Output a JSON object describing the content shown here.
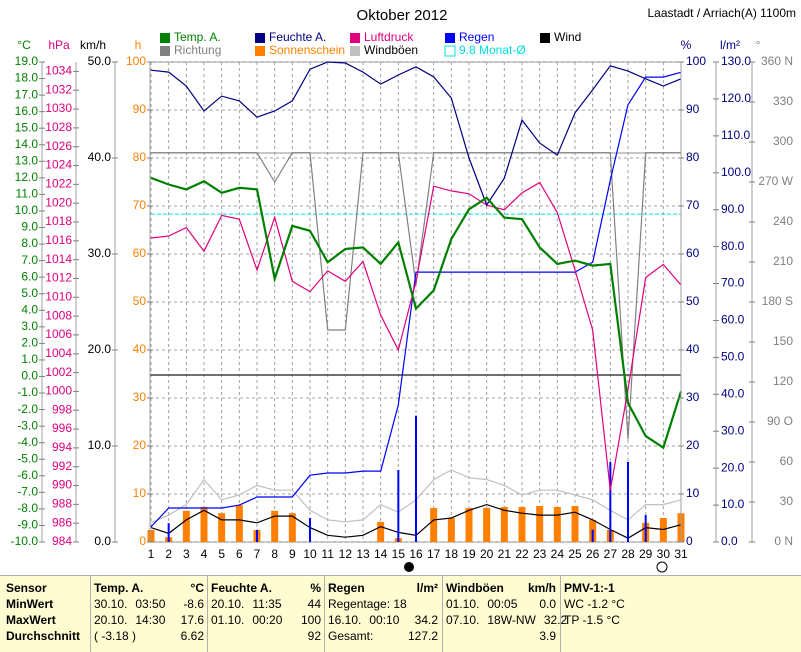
{
  "chart_data": {
    "type": "line",
    "title": "Oktober 2012",
    "subtitle": "Laastadt / Arriach(A) 1100m",
    "x": [
      1,
      2,
      3,
      4,
      5,
      6,
      7,
      8,
      9,
      10,
      11,
      12,
      13,
      14,
      15,
      16,
      17,
      18,
      19,
      20,
      21,
      22,
      23,
      24,
      25,
      26,
      27,
      28,
      29,
      30,
      31
    ],
    "xlim": [
      1,
      31
    ],
    "xticks": [
      1,
      2,
      3,
      4,
      5,
      6,
      7,
      8,
      9,
      10,
      11,
      12,
      13,
      14,
      15,
      16,
      17,
      18,
      19,
      20,
      21,
      22,
      23,
      24,
      25,
      26,
      27,
      28,
      29,
      30,
      31
    ],
    "grid": true,
    "axes": [
      {
        "label": "°C",
        "color": "#008000",
        "lim": [
          -10,
          19
        ],
        "ticks": [
          {
            "value": -10,
            "label": "-10.0"
          },
          {
            "value": -9,
            "label": "-9.0"
          },
          {
            "value": -8,
            "label": "-8.0"
          },
          {
            "value": -7,
            "label": "-7.0"
          },
          {
            "value": -6,
            "label": "-6.0"
          },
          {
            "value": -5,
            "label": "-5.0"
          },
          {
            "value": -4,
            "label": "-4.0"
          },
          {
            "value": -3,
            "label": "-3.0"
          },
          {
            "value": -2,
            "label": "-2.0"
          },
          {
            "value": -1,
            "label": "-1.0"
          },
          {
            "value": 0,
            "label": "0.0"
          },
          {
            "value": 1,
            "label": "1.0"
          },
          {
            "value": 2,
            "label": "2.0"
          },
          {
            "value": 3,
            "label": "3.0"
          },
          {
            "value": 4,
            "label": "4.0"
          },
          {
            "value": 5,
            "label": "5.0"
          },
          {
            "value": 6,
            "label": "6.0"
          },
          {
            "value": 7,
            "label": "7.0"
          },
          {
            "value": 8,
            "label": "8.0"
          },
          {
            "value": 9,
            "label": "9.0"
          },
          {
            "value": 10,
            "label": "10.0"
          },
          {
            "value": 11,
            "label": "11.0"
          },
          {
            "value": 12,
            "label": "12.0"
          },
          {
            "value": 13,
            "label": "13.0"
          },
          {
            "value": 14,
            "label": "14.0"
          },
          {
            "value": 15,
            "label": "15.0"
          },
          {
            "value": 16,
            "label": "16.0"
          },
          {
            "value": 17,
            "label": "17.0"
          },
          {
            "value": 18,
            "label": "18.0"
          },
          {
            "value": 19,
            "label": "19.0"
          }
        ]
      },
      {
        "label": "hPa",
        "color": "#e0007f",
        "lim": [
          984,
          1035
        ],
        "ticks": [
          984,
          986,
          988,
          990,
          992,
          994,
          996,
          998,
          1000,
          1002,
          1004,
          1006,
          1008,
          1010,
          1012,
          1014,
          1016,
          1018,
          1020,
          1022,
          1024,
          1026,
          1028,
          1030,
          1032,
          1034
        ]
      },
      {
        "label": "km/h",
        "color": "#000000",
        "lim": [
          0,
          50
        ],
        "ticks": [
          {
            "value": 0,
            "label": "0.0"
          },
          {
            "value": 10,
            "label": "10.0"
          },
          {
            "value": 20,
            "label": "20.0"
          },
          {
            "value": 30,
            "label": "30.0"
          },
          {
            "value": 40,
            "label": "40.0"
          },
          {
            "value": 50,
            "label": "50.0"
          }
        ]
      },
      {
        "label": "h",
        "color": "#ff8000",
        "lim": [
          0,
          100
        ],
        "ticks": [
          0,
          10,
          20,
          30,
          40,
          50,
          60,
          70,
          80,
          90,
          100
        ]
      },
      {
        "label": "%",
        "color": "#000080",
        "lim": [
          0,
          100
        ],
        "ticks": [
          0,
          10,
          20,
          30,
          40,
          50,
          60,
          70,
          80,
          90,
          100
        ],
        "grid": true
      },
      {
        "label": "l/m²",
        "color": "#000080",
        "lim": [
          0,
          130
        ],
        "ticks": [
          {
            "value": 0,
            "label": "0.0"
          },
          {
            "value": 10,
            "label": "10.0"
          },
          {
            "value": 20,
            "label": "20.0"
          },
          {
            "value": 30,
            "label": "30.0"
          },
          {
            "value": 40,
            "label": "40.0"
          },
          {
            "value": 50,
            "label": "50.0"
          },
          {
            "value": 60,
            "label": "60.0"
          },
          {
            "value": 70,
            "label": "70.0"
          },
          {
            "value": 80,
            "label": "80.0"
          },
          {
            "value": 90,
            "label": "90.0"
          },
          {
            "value": 100,
            "label": "100.0"
          },
          {
            "value": 110,
            "label": "110.0"
          },
          {
            "value": 120,
            "label": "120.0"
          },
          {
            "value": 130,
            "label": "130.0"
          }
        ]
      },
      {
        "label": "°",
        "color": "#808080",
        "lim": [
          0,
          360
        ],
        "ticks": [
          {
            "value": 0,
            "label": "0 N"
          },
          30,
          60,
          {
            "value": 90,
            "label": "90 O"
          },
          120,
          150,
          {
            "value": 180,
            "label": "180 S"
          },
          210,
          240,
          {
            "value": 270,
            "label": "270 W"
          },
          300,
          330,
          {
            "value": 360,
            "label": "360 N"
          }
        ]
      }
    ],
    "series": [
      {
        "name": "Temp. A.",
        "color": "#008000",
        "axis": "°C",
        "style": "line",
        "values": [
          12.0,
          11.6,
          11.3,
          11.8,
          11.1,
          11.4,
          11.3,
          5.9,
          9.1,
          8.8,
          6.9,
          7.7,
          7.8,
          6.8,
          8.1,
          4.1,
          5.2,
          8.3,
          10.1,
          10.8,
          9.6,
          9.5,
          7.8,
          6.8,
          7.0,
          6.7,
          6.8,
          -1.6,
          -3.6,
          -4.3,
          -0.9
        ]
      },
      {
        "name": "Feuchte A.",
        "color": "#000080",
        "axis": "%",
        "style": "line",
        "values": [
          98.3,
          97.9,
          95,
          89.8,
          92.9,
          91.9,
          88.5,
          89.8,
          91.9,
          98.5,
          100,
          99.8,
          97.9,
          95.4,
          97.3,
          99,
          96.9,
          92.5,
          80,
          70.2,
          75.8,
          87.9,
          83.1,
          80.6,
          89.4,
          94.2,
          99.2,
          98.1,
          96.5,
          95,
          96.5
        ]
      },
      {
        "name": "Luftdruck",
        "color": "#e0007f",
        "axis": "hPa",
        "style": "line",
        "values": [
          1016.3,
          1016.5,
          1017.4,
          1014.9,
          1018.7,
          1018.3,
          1012.9,
          1018.5,
          1011.7,
          1010.6,
          1012.8,
          1011.7,
          1013.8,
          1008.1,
          1004.4,
          1011.7,
          1021.8,
          1021.3,
          1021.0,
          1019.8,
          1019.3,
          1021.1,
          1022.2,
          1019.0,
          1012.9,
          1006.5,
          989.5,
          1000.2,
          1012.1,
          1013.5,
          1011.3
        ]
      },
      {
        "name": "Regen",
        "color": "#0000ff",
        "axis": "l/m²",
        "style": "line",
        "values": [
          4.1,
          9.2,
          9.2,
          9.2,
          9.2,
          10.0,
          12.2,
          12.2,
          12.2,
          18.1,
          18.7,
          18.7,
          19.2,
          19.2,
          37.1,
          73.1,
          73.1,
          73.1,
          73.1,
          73.1,
          73.1,
          73.1,
          73.1,
          73.1,
          73.1,
          75.8,
          98.0,
          118.4,
          125.9,
          125.9,
          127.2
        ],
        "daily_values": [
          0,
          5.1,
          0,
          0,
          0,
          0,
          3.3,
          0,
          0,
          6.5,
          0,
          0,
          0,
          0,
          19.5,
          34.2,
          0,
          0,
          0,
          0,
          0,
          0,
          0,
          0,
          0,
          3.3,
          21.7,
          21.7,
          7.3,
          0,
          0
        ]
      },
      {
        "name": "Wind",
        "color": "#000000",
        "axis": "km/h",
        "style": "line",
        "values": [
          1.5,
          0.9,
          2.3,
          3.3,
          2.3,
          2.3,
          2.0,
          2.7,
          2.7,
          1.5,
          0.7,
          0.5,
          0.7,
          1.6,
          1.0,
          0.7,
          2.3,
          2.5,
          3.3,
          3.9,
          3.3,
          3.0,
          2.8,
          2.8,
          3.1,
          2.3,
          1.3,
          0.4,
          1.5,
          1.3,
          1.8
        ]
      },
      {
        "name": "Richtung",
        "color": "#808080",
        "axis": "°",
        "style": "line",
        "values": [
          292,
          292,
          292,
          292,
          292,
          292,
          292,
          270,
          292,
          292,
          159,
          159,
          292,
          292,
          292,
          193,
          292,
          292,
          292,
          292,
          292,
          292,
          292,
          292,
          292,
          292,
          292,
          77,
          292,
          292,
          292
        ]
      },
      {
        "name": "Sonnenschein",
        "color": "#ff8000",
        "axis": "h",
        "style": "bar",
        "values": [
          2.5,
          1.0,
          6.5,
          7.3,
          6.0,
          7.7,
          2.5,
          6.5,
          6.0,
          0,
          0,
          0,
          0,
          4.2,
          0.8,
          0,
          7.1,
          5.0,
          7.1,
          7.1,
          7.3,
          7.3,
          7.5,
          7.3,
          7.5,
          4.6,
          2.5,
          0,
          4.0,
          5.0,
          6.0
        ]
      },
      {
        "name": "Windböen",
        "color": "#c0c0c0",
        "axis": "km/h",
        "style": "line",
        "values": [
          2.0,
          2.8,
          3.9,
          6.5,
          4.4,
          4.9,
          5.9,
          5.4,
          5.4,
          3.3,
          2.3,
          2.1,
          2.3,
          3.9,
          3.1,
          4.4,
          6.5,
          7.5,
          6.7,
          6.5,
          5.9,
          4.9,
          5.4,
          5.4,
          4.9,
          4.4,
          3.3,
          2.3,
          3.9,
          3.9,
          4.4
        ]
      }
    ],
    "monthly_average": {
      "label": "9.8 Monat-Ø",
      "color": "#00e0e0",
      "axis": "l/m²",
      "value": 88.8
    }
  },
  "stats": {
    "header": [
      [
        "Sensor"
      ],
      [
        "Temp. A.",
        "°C"
      ],
      [
        "Feuchte A.",
        "%"
      ],
      [
        "Regen",
        "l/m²"
      ],
      [
        "Windböen",
        "km/h"
      ],
      [
        "PMV-1:-1"
      ]
    ],
    "rows": [
      [
        [
          "MinWert"
        ],
        [
          "30.10.",
          "03:50",
          "-8.6"
        ],
        [
          "20.10.",
          "11:35",
          "44"
        ],
        [
          "Regentage: 18"
        ],
        [
          "01.10.",
          "00:05",
          "0.0"
        ],
        [
          "WC -1.2 °C"
        ]
      ],
      [
        [
          "MaxWert"
        ],
        [
          "20.10.",
          "14:30",
          "17.6"
        ],
        [
          "01.10.",
          "00:20",
          "100"
        ],
        [
          "16.10.",
          "00:10",
          "34.2"
        ],
        [
          "07.10.",
          "18W-NW",
          "32.2"
        ],
        [
          "TP -1.5 °C"
        ]
      ],
      [
        [
          "Durchschnitt"
        ],
        [
          "( -3.18 )",
          "6.62"
        ],
        [
          "92"
        ],
        [
          "Gesamt:",
          "127.2"
        ],
        [
          "3.9"
        ],
        []
      ]
    ]
  }
}
